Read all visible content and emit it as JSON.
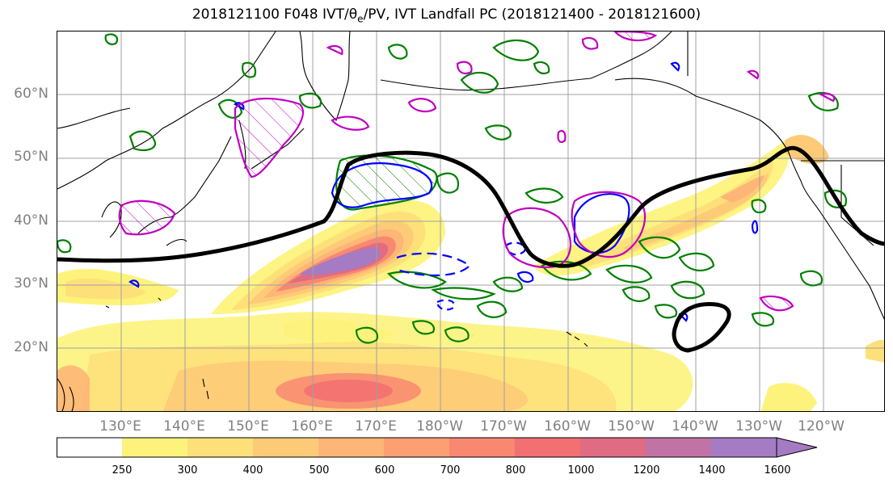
{
  "title": "2018121100 F048 IVT/θe/PV, IVT Landfall PC (2018121400 - 2018121600)",
  "latitudes": [
    "60°N",
    "50°N",
    "40°N",
    "30°N",
    "20°N"
  ],
  "longitudes": [
    "130°E",
    "140°E",
    "150°E",
    "160°E",
    "170°E",
    "180°W",
    "170°W",
    "160°W",
    "150°W",
    "140°W",
    "130°W",
    "120°W"
  ],
  "colorbar": {
    "ticks": [
      "250",
      "300",
      "400",
      "500",
      "600",
      "700",
      "800",
      "1000",
      "1200",
      "1400",
      "1600"
    ],
    "colors": [
      "#ffffff",
      "#fdf37c",
      "#fee07a",
      "#fdcb78",
      "#fdb676",
      "#fc9f73",
      "#f98870",
      "#f26f72",
      "#df6c83",
      "#c273a6",
      "#a57bc4"
    ],
    "extend": "max"
  },
  "colors": {
    "pc_line": "#000000",
    "green_contour": "#008000",
    "blue_contour": "#0000ff",
    "magenta_contour": "#c000c0",
    "coastline": "#000000",
    "grid": "#a0a0a0"
  },
  "legend": "none"
}
